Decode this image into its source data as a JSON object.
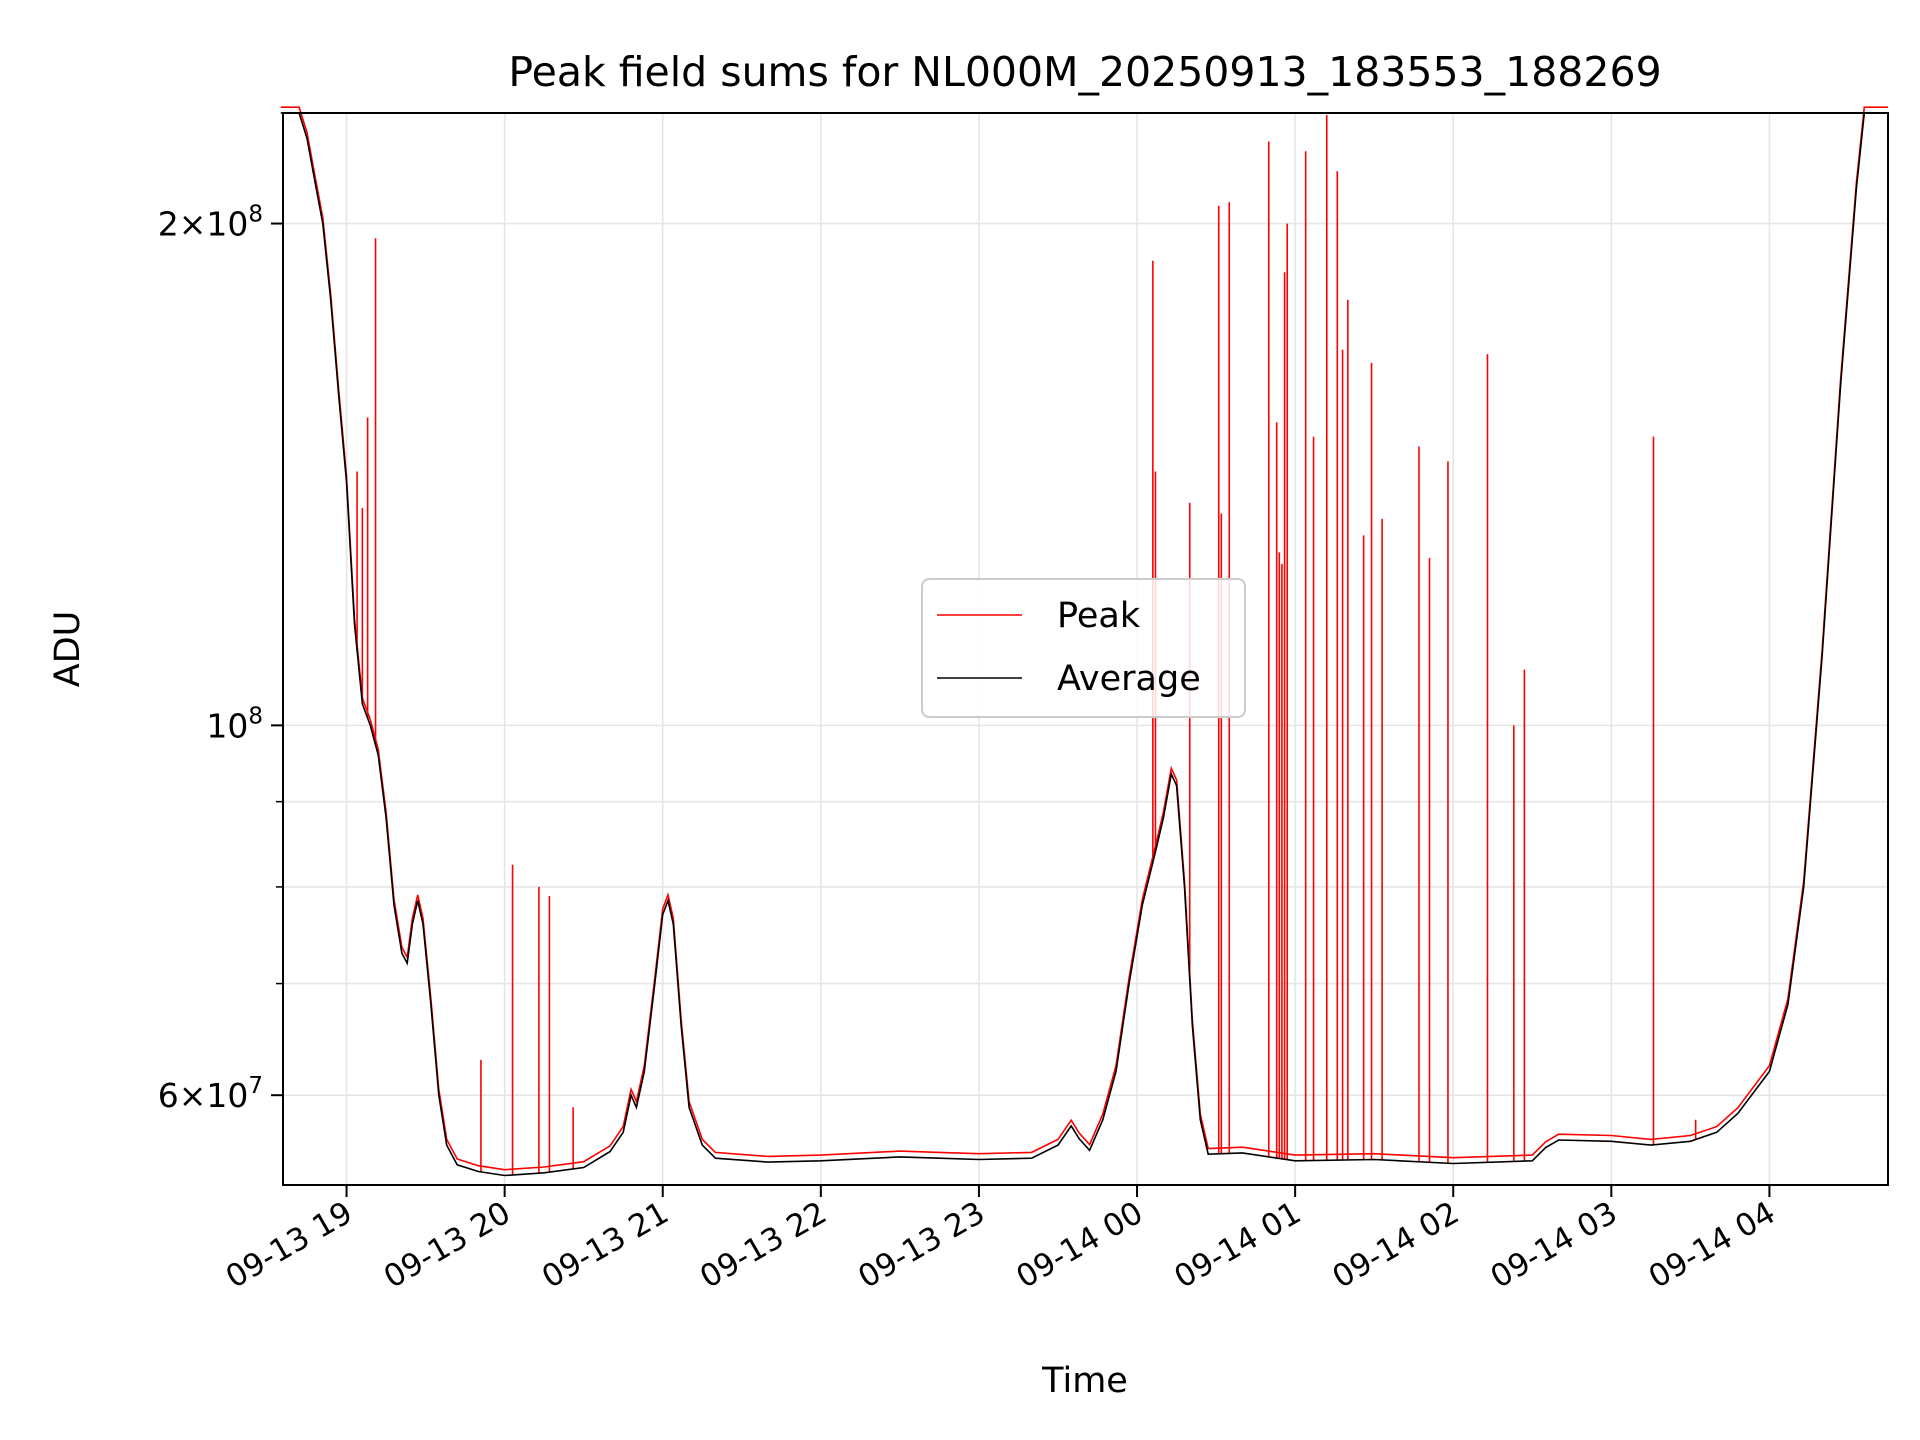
{
  "chart_data": {
    "type": "line",
    "title": "Peak field sums for NL000M_20250913_183553_188269",
    "xlabel": "Time",
    "ylabel": "ADU",
    "x_range": [
      "2025-09-13 18:35:53",
      "2025-09-14 04:45:00"
    ],
    "y_range": [
      53000000,
      233000000
    ],
    "y_scale": "log",
    "grid": true,
    "legend_position": "center",
    "colors": {
      "Peak": "#ff0000",
      "Average": "#000000"
    },
    "x_ticks": [
      {
        "value": "2025-09-13 19:00",
        "label": "09-13 19"
      },
      {
        "value": "2025-09-13 20:00",
        "label": "09-13 20"
      },
      {
        "value": "2025-09-13 21:00",
        "label": "09-13 21"
      },
      {
        "value": "2025-09-13 22:00",
        "label": "09-13 22"
      },
      {
        "value": "2025-09-13 23:00",
        "label": "09-13 23"
      },
      {
        "value": "2025-09-14 00:00",
        "label": "09-14 00"
      },
      {
        "value": "2025-09-14 01:00",
        "label": "09-14 01"
      },
      {
        "value": "2025-09-14 02:00",
        "label": "09-14 02"
      },
      {
        "value": "2025-09-14 03:00",
        "label": "09-14 03"
      },
      {
        "value": "2025-09-14 04:00",
        "label": "09-14 04"
      }
    ],
    "y_major_ticks": [
      {
        "value": 60000000,
        "mantissa": "6",
        "exponent": "7"
      },
      {
        "value": 100000000,
        "mantissa": "",
        "exponent": "8"
      },
      {
        "value": 200000000,
        "mantissa": "2",
        "exponent": "8"
      }
    ],
    "y_minor_ticks": [
      70000000,
      80000000,
      90000000
    ],
    "series": [
      {
        "name": "Average",
        "points": [
          [
            "2025-09-13 18:35",
            233000000
          ],
          [
            "2025-09-13 18:42",
            233000000
          ],
          [
            "2025-09-13 18:45",
            225000000
          ],
          [
            "2025-09-13 18:48",
            212000000
          ],
          [
            "2025-09-13 18:51",
            200000000
          ],
          [
            "2025-09-13 18:54",
            180000000
          ],
          [
            "2025-09-13 18:57",
            158000000
          ],
          [
            "2025-09-13 19:00",
            140000000
          ],
          [
            "2025-09-13 19:03",
            115000000
          ],
          [
            "2025-09-13 19:06",
            103000000
          ],
          [
            "2025-09-13 19:09",
            100000000
          ],
          [
            "2025-09-13 19:12",
            96000000
          ],
          [
            "2025-09-13 19:15",
            88000000
          ],
          [
            "2025-09-13 19:18",
            78000000
          ],
          [
            "2025-09-13 19:21",
            73000000
          ],
          [
            "2025-09-13 19:23",
            72000000
          ],
          [
            "2025-09-13 19:25",
            76000000
          ],
          [
            "2025-09-13 19:27",
            78500000
          ],
          [
            "2025-09-13 19:29",
            76000000
          ],
          [
            "2025-09-13 19:32",
            68000000
          ],
          [
            "2025-09-13 19:35",
            60000000
          ],
          [
            "2025-09-13 19:38",
            56000000
          ],
          [
            "2025-09-13 19:42",
            54500000
          ],
          [
            "2025-09-13 19:50",
            54000000
          ],
          [
            "2025-09-13 20:00",
            53700000
          ],
          [
            "2025-09-13 20:15",
            53900000
          ],
          [
            "2025-09-13 20:30",
            54300000
          ],
          [
            "2025-09-13 20:40",
            55500000
          ],
          [
            "2025-09-13 20:45",
            57000000
          ],
          [
            "2025-09-13 20:48",
            60000000
          ],
          [
            "2025-09-13 20:50",
            59000000
          ],
          [
            "2025-09-13 20:53",
            62000000
          ],
          [
            "2025-09-13 20:57",
            70000000
          ],
          [
            "2025-09-13 21:00",
            77000000
          ],
          [
            "2025-09-13 21:02",
            78500000
          ],
          [
            "2025-09-13 21:04",
            76000000
          ],
          [
            "2025-09-13 21:07",
            66000000
          ],
          [
            "2025-09-13 21:10",
            59000000
          ],
          [
            "2025-09-13 21:15",
            56000000
          ],
          [
            "2025-09-13 21:20",
            55000000
          ],
          [
            "2025-09-13 21:40",
            54700000
          ],
          [
            "2025-09-13 22:00",
            54800000
          ],
          [
            "2025-09-13 22:30",
            55100000
          ],
          [
            "2025-09-13 22:45",
            55000000
          ],
          [
            "2025-09-13 23:00",
            54900000
          ],
          [
            "2025-09-13 23:20",
            55000000
          ],
          [
            "2025-09-13 23:30",
            56000000
          ],
          [
            "2025-09-13 23:35",
            57500000
          ],
          [
            "2025-09-13 23:38",
            56500000
          ],
          [
            "2025-09-13 23:42",
            55600000
          ],
          [
            "2025-09-13 23:47",
            58000000
          ],
          [
            "2025-09-13 23:52",
            62000000
          ],
          [
            "2025-09-13 23:57",
            70000000
          ],
          [
            "2025-09-14 00:02",
            78000000
          ],
          [
            "2025-09-14 00:07",
            84000000
          ],
          [
            "2025-09-14 00:10",
            88000000
          ],
          [
            "2025-09-14 00:13",
            93500000
          ],
          [
            "2025-09-14 00:15",
            92000000
          ],
          [
            "2025-09-14 00:18",
            80000000
          ],
          [
            "2025-09-14 00:21",
            66000000
          ],
          [
            "2025-09-14 00:24",
            58000000
          ],
          [
            "2025-09-14 00:27",
            55300000
          ],
          [
            "2025-09-14 00:40",
            55400000
          ],
          [
            "2025-09-14 01:00",
            54800000
          ],
          [
            "2025-09-14 01:30",
            54900000
          ],
          [
            "2025-09-14 02:00",
            54600000
          ],
          [
            "2025-09-14 02:30",
            54800000
          ],
          [
            "2025-09-14 02:35",
            55800000
          ],
          [
            "2025-09-14 02:40",
            56400000
          ],
          [
            "2025-09-14 03:00",
            56300000
          ],
          [
            "2025-09-14 03:15",
            56000000
          ],
          [
            "2025-09-14 03:30",
            56300000
          ],
          [
            "2025-09-14 03:40",
            57000000
          ],
          [
            "2025-09-14 03:48",
            58500000
          ],
          [
            "2025-09-14 04:00",
            62000000
          ],
          [
            "2025-09-14 04:07",
            68000000
          ],
          [
            "2025-09-14 04:13",
            80000000
          ],
          [
            "2025-09-14 04:20",
            110000000
          ],
          [
            "2025-09-14 04:27",
            160000000
          ],
          [
            "2025-09-14 04:33",
            210000000
          ],
          [
            "2025-09-14 04:36",
            233000000
          ],
          [
            "2025-09-14 04:45",
            233000000
          ]
        ]
      },
      {
        "name": "Peak",
        "baseline": "follows Average",
        "spikes": [
          [
            "2025-09-13 19:04",
            142000000
          ],
          [
            "2025-09-13 19:06",
            135000000
          ],
          [
            "2025-09-13 19:08",
            153000000
          ],
          [
            "2025-09-13 19:11",
            196000000
          ],
          [
            "2025-09-13 19:51",
            63000000
          ],
          [
            "2025-09-13 20:03",
            82500000
          ],
          [
            "2025-09-13 20:13",
            80000000
          ],
          [
            "2025-09-13 20:17",
            79000000
          ],
          [
            "2025-09-13 20:26",
            59000000
          ],
          [
            "2025-09-14 00:06",
            190000000
          ],
          [
            "2025-09-14 00:07",
            142000000
          ],
          [
            "2025-09-14 00:20",
            136000000
          ],
          [
            "2025-09-14 00:31",
            205000000
          ],
          [
            "2025-09-14 00:32",
            134000000
          ],
          [
            "2025-09-14 00:35",
            206000000
          ],
          [
            "2025-09-14 00:50",
            224000000
          ],
          [
            "2025-09-14 00:53",
            152000000
          ],
          [
            "2025-09-14 00:54",
            127000000
          ],
          [
            "2025-09-14 00:55",
            125000000
          ],
          [
            "2025-09-14 00:56",
            187000000
          ],
          [
            "2025-09-14 00:57",
            200000000
          ],
          [
            "2025-09-14 01:04",
            221000000
          ],
          [
            "2025-09-14 01:07",
            149000000
          ],
          [
            "2025-09-14 01:12",
            233000000
          ],
          [
            "2025-09-14 01:16",
            215000000
          ],
          [
            "2025-09-14 01:18",
            168000000
          ],
          [
            "2025-09-14 01:20",
            180000000
          ],
          [
            "2025-09-14 01:26",
            130000000
          ],
          [
            "2025-09-14 01:29",
            165000000
          ],
          [
            "2025-09-14 01:33",
            133000000
          ],
          [
            "2025-09-14 01:47",
            147000000
          ],
          [
            "2025-09-14 01:51",
            126000000
          ],
          [
            "2025-09-14 01:58",
            144000000
          ],
          [
            "2025-09-14 02:13",
            167000000
          ],
          [
            "2025-09-14 02:23",
            100000000
          ],
          [
            "2025-09-14 02:27",
            108000000
          ],
          [
            "2025-09-14 03:16",
            149000000
          ],
          [
            "2025-09-14 03:32",
            58000000
          ]
        ]
      }
    ]
  }
}
